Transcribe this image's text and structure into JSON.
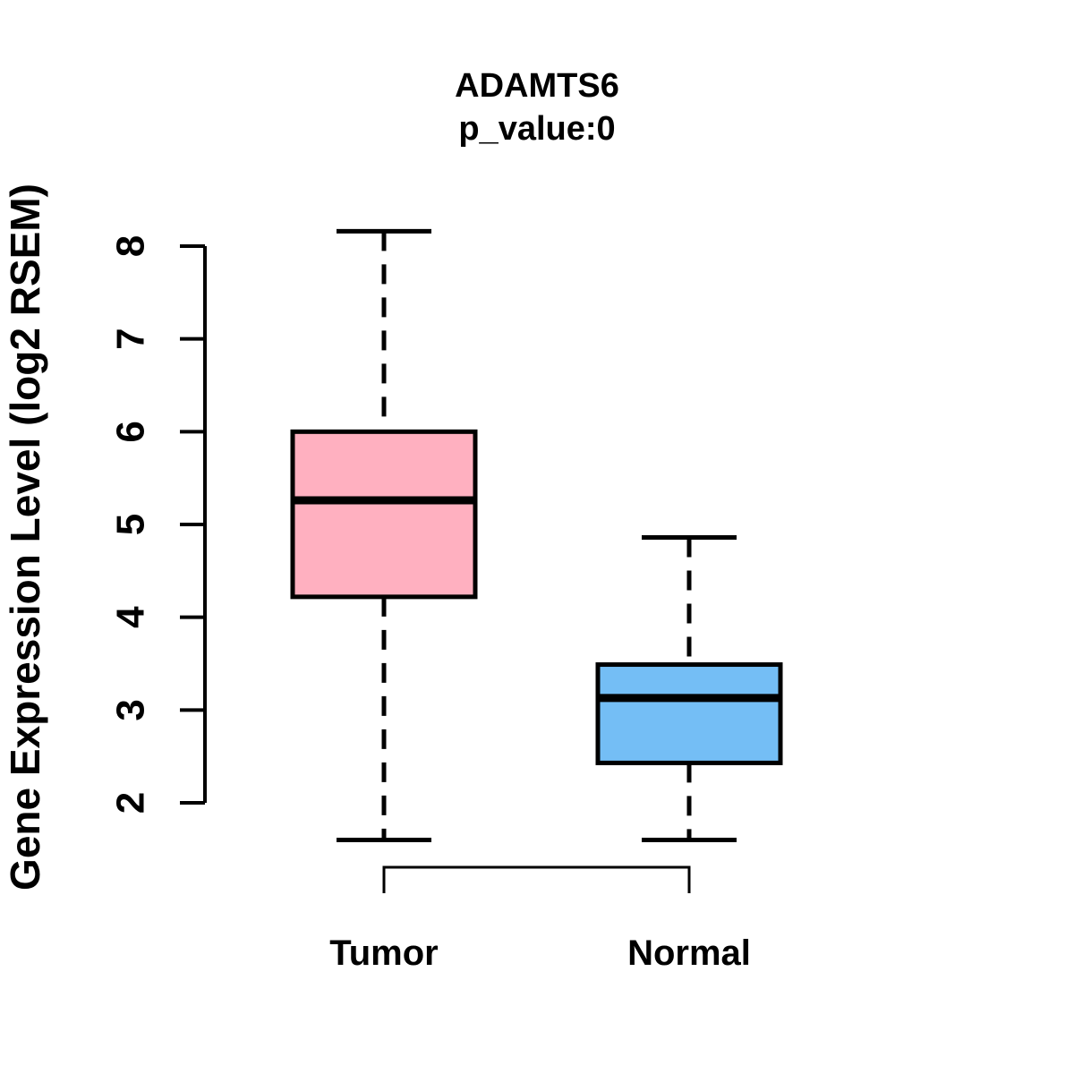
{
  "figure": {
    "background": "#ffffff",
    "text_color": "#000000"
  },
  "chart_data": {
    "type": "boxplot",
    "title": "ADAMTS6",
    "subtitle": "p_value:0",
    "ylabel": "Gene Expression Level (log2 RSEM)",
    "xlabel": "",
    "ylim": [
      2,
      8
    ],
    "y_ticks": [
      "2",
      "3",
      "4",
      "5",
      "6",
      "7",
      "8"
    ],
    "categories": [
      "Tumor",
      "Normal"
    ],
    "grid": false,
    "legend": "none",
    "whisker_style": "dashed",
    "series": [
      {
        "name": "Tumor",
        "color": "#FFB0C0",
        "border_color": "#000000",
        "whisker_low": 1.6,
        "q1": 4.22,
        "median": 5.26,
        "q3": 6.0,
        "whisker_high": 8.16
      },
      {
        "name": "Normal",
        "color": "#74BEF5",
        "border_color": "#000000",
        "whisker_low": 1.6,
        "q1": 2.43,
        "median": 3.13,
        "q3": 3.49,
        "whisker_high": 4.86
      }
    ]
  }
}
